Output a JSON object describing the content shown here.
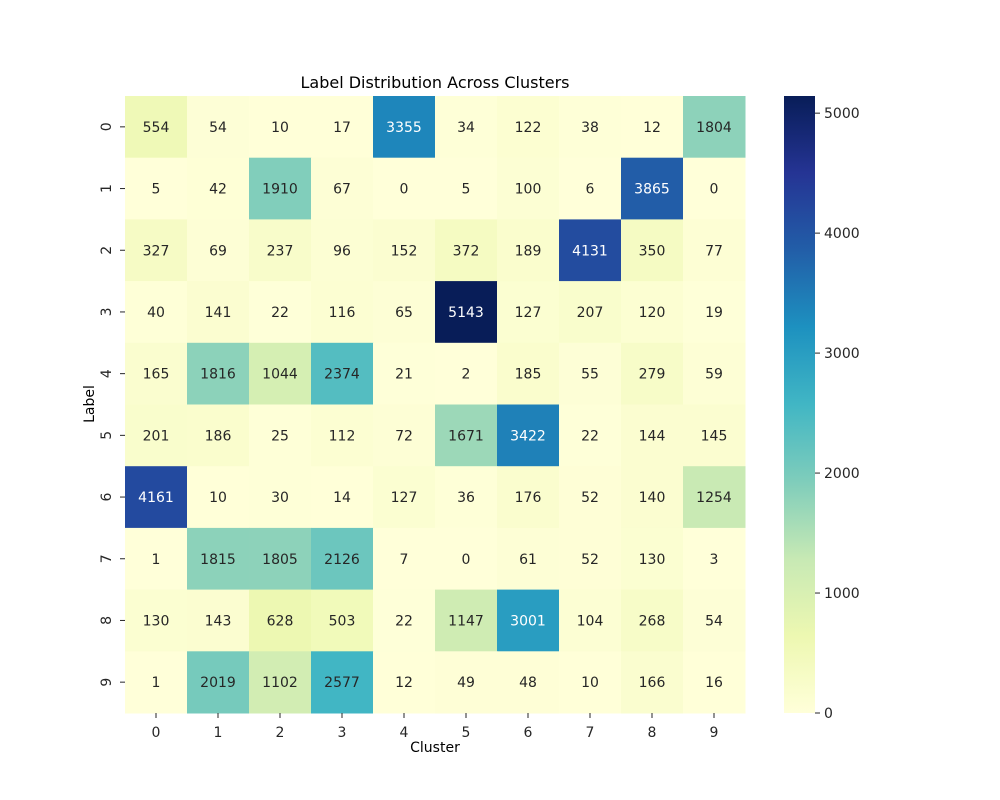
{
  "chart_data": {
    "type": "heatmap",
    "title": "Label Distribution Across Clusters",
    "xlabel": "Cluster",
    "ylabel": "Label",
    "x_categories": [
      "0",
      "1",
      "2",
      "3",
      "4",
      "5",
      "6",
      "7",
      "8",
      "9"
    ],
    "y_categories": [
      "0",
      "1",
      "2",
      "3",
      "4",
      "5",
      "6",
      "7",
      "8",
      "9"
    ],
    "values": [
      [
        554,
        54,
        10,
        17,
        3355,
        34,
        122,
        38,
        12,
        1804
      ],
      [
        5,
        42,
        1910,
        67,
        0,
        5,
        100,
        6,
        3865,
        0
      ],
      [
        327,
        69,
        237,
        96,
        152,
        372,
        189,
        4131,
        350,
        77
      ],
      [
        40,
        141,
        22,
        116,
        65,
        5143,
        127,
        207,
        120,
        19
      ],
      [
        165,
        1816,
        1044,
        2374,
        21,
        2,
        185,
        55,
        279,
        59
      ],
      [
        201,
        186,
        25,
        112,
        72,
        1671,
        3422,
        22,
        144,
        145
      ],
      [
        4161,
        10,
        30,
        14,
        127,
        36,
        176,
        52,
        140,
        1254
      ],
      [
        1,
        1815,
        1805,
        2126,
        7,
        0,
        61,
        52,
        130,
        3
      ],
      [
        130,
        143,
        628,
        503,
        22,
        1147,
        3001,
        104,
        268,
        54
      ],
      [
        1,
        2019,
        1102,
        2577,
        12,
        49,
        48,
        10,
        166,
        16
      ]
    ],
    "colormap": "YlGnBu",
    "vmin": 0,
    "vmax": 5143,
    "colorbar_ticks": [
      "0",
      "1000",
      "2000",
      "3000",
      "4000",
      "5000"
    ],
    "colorbar_tick_values": [
      0,
      1000,
      2000,
      3000,
      4000,
      5000
    ],
    "annotations": true,
    "grid": false,
    "legend": "colorbar-right"
  }
}
